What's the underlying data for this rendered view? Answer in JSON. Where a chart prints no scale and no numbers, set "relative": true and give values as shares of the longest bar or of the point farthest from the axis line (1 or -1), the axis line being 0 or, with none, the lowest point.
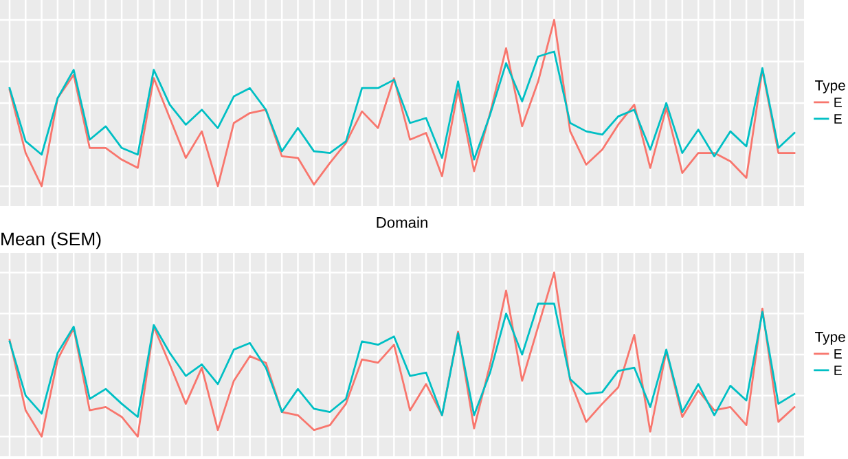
{
  "chart_data": [
    {
      "type": "line",
      "xlabel": "Domain",
      "relative": true,
      "grid": true,
      "legend": "right",
      "legend_title": "Type",
      "categories": [
        null,
        null,
        null,
        null,
        null,
        null,
        null,
        null,
        null,
        null,
        null,
        null,
        null,
        null,
        null,
        null,
        null,
        null,
        null,
        null,
        null,
        null,
        null,
        null,
        null,
        null,
        null,
        null,
        null,
        null,
        null,
        null,
        null,
        null,
        null,
        null,
        null,
        null,
        null,
        null,
        null,
        null,
        null,
        null,
        null,
        null,
        null,
        null,
        null,
        null
      ],
      "series": [
        {
          "name": "E",
          "color": "#f8766d",
          "values": [
            0.58,
            0.2,
            0,
            0.53,
            0.67,
            0.23,
            0.23,
            0.16,
            0.11,
            0.65,
            0.41,
            0.17,
            0.33,
            0.0,
            0.38,
            0.44,
            0.46,
            0.18,
            0.17,
            0.01,
            0.14,
            0.26,
            0.45,
            0.35,
            0.65,
            0.28,
            0.32,
            0.06,
            0.58,
            0.09,
            0.44,
            0.83,
            0.36,
            0.63,
            1,
            0.33,
            0.13,
            0.22,
            0.37,
            0.49,
            0.11,
            0.47,
            0.08,
            0.2,
            0.2,
            0.15,
            0.05,
            0.7,
            0.2,
            0.2
          ]
        },
        {
          "name": "E",
          "color": "#00bfc4",
          "values": [
            0.59,
            0.27,
            0.19,
            0.53,
            0.7,
            0.28,
            0.36,
            0.23,
            0.19,
            0.7,
            0.49,
            0.37,
            0.46,
            0.35,
            0.54,
            0.59,
            0.46,
            0.21,
            0.35,
            0.21,
            0.2,
            0.27,
            0.59,
            0.59,
            0.64,
            0.38,
            0.41,
            0.17,
            0.63,
            0.16,
            0.43,
            0.74,
            0.51,
            0.78,
            0.81,
            0.38,
            0.33,
            0.31,
            0.42,
            0.46,
            0.22,
            0.5,
            0.2,
            0.34,
            0.18,
            0.33,
            0.24,
            0.71,
            0.23,
            0.32
          ]
        }
      ]
    },
    {
      "type": "line",
      "title": "Mean (SEM)",
      "relative": true,
      "grid": true,
      "legend": "right",
      "legend_title": "Type",
      "categories": [
        null,
        null,
        null,
        null,
        null,
        null,
        null,
        null,
        null,
        null,
        null,
        null,
        null,
        null,
        null,
        null,
        null,
        null,
        null,
        null,
        null,
        null,
        null,
        null,
        null,
        null,
        null,
        null,
        null,
        null,
        null,
        null,
        null,
        null,
        null,
        null,
        null,
        null,
        null,
        null,
        null,
        null,
        null,
        null,
        null,
        null,
        null,
        null,
        null,
        null
      ],
      "series": [
        {
          "name": "E",
          "color": "#f8766d",
          "values": [
            0.59,
            0.16,
            0,
            0.47,
            0.66,
            0.16,
            0.18,
            0.12,
            0.0,
            0.67,
            0.44,
            0.2,
            0.42,
            0.04,
            0.34,
            0.49,
            0.45,
            0.15,
            0.13,
            0.04,
            0.07,
            0.2,
            0.47,
            0.45,
            0.56,
            0.16,
            0.32,
            0.13,
            0.64,
            0.05,
            0.44,
            0.89,
            0.34,
            0.67,
            1,
            0.34,
            0.09,
            0.2,
            0.3,
            0.62,
            0.03,
            0.52,
            0.12,
            0.28,
            0.16,
            0.18,
            0.07,
            0.78,
            0.09,
            0.18
          ]
        },
        {
          "name": "E",
          "color": "#00bfc4",
          "values": [
            0.58,
            0.25,
            0.14,
            0.51,
            0.67,
            0.23,
            0.29,
            0.2,
            0.12,
            0.68,
            0.51,
            0.37,
            0.44,
            0.32,
            0.53,
            0.57,
            0.42,
            0.15,
            0.29,
            0.17,
            0.15,
            0.23,
            0.58,
            0.56,
            0.61,
            0.37,
            0.39,
            0.13,
            0.63,
            0.13,
            0.39,
            0.75,
            0.5,
            0.81,
            0.81,
            0.35,
            0.26,
            0.27,
            0.4,
            0.42,
            0.18,
            0.53,
            0.15,
            0.32,
            0.13,
            0.31,
            0.22,
            0.76,
            0.2,
            0.26
          ]
        }
      ]
    }
  ]
}
